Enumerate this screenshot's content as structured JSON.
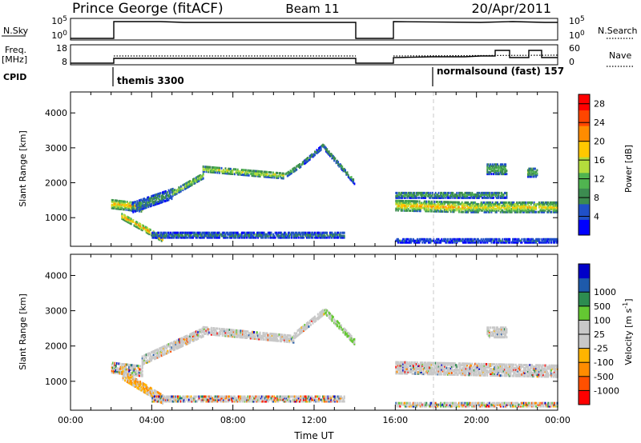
{
  "header": {
    "station": "Prince George (fitACF)",
    "beam": "Beam 11",
    "date": "20/Apr/2011"
  },
  "strip_panels": {
    "nsky": {
      "left_label": "N.Sky",
      "left_ticks": [
        "10^5",
        "10^0"
      ],
      "right_label": "N.Search",
      "right_ticks": [
        "10^5",
        "10^0"
      ]
    },
    "freq": {
      "left_label_line1": "Freq.",
      "left_label_line2": "[MHz]",
      "left_ticks": [
        "18",
        "8"
      ],
      "right_label": "Nave",
      "right_ticks": [
        "60",
        "0"
      ]
    },
    "cpid": {
      "label": "CPID",
      "modes": [
        {
          "name": "themis 3300",
          "start_hour": 2.0
        },
        {
          "name": "normalsound (fast) 157",
          "start_hour": 18.0
        }
      ]
    }
  },
  "colors": {
    "power": [
      "#0000ff",
      "#2050c8",
      "#3c8c50",
      "#50b450",
      "#b4dc3c",
      "#ffc800",
      "#ff8c00",
      "#ff4600",
      "#ff0000"
    ],
    "velocity": [
      "#ff0000",
      "#ff5000",
      "#ff8c00",
      "#ffb400",
      "#c8c8c8",
      "#c8c8c8",
      "#64c832",
      "#2d8c50",
      "#1e5aaa",
      "#0000c8"
    ]
  },
  "chart_data": [
    {
      "type": "heatmap",
      "panel": "power",
      "xlabel": "",
      "ylabel": "Slant Range [km]",
      "x_range_hours": [
        0,
        24
      ],
      "ylim": [
        180,
        4600
      ],
      "y_ticks": [
        "1000",
        "2000",
        "3000",
        "4000"
      ],
      "data_gap_hours": [
        14.0,
        16.0
      ],
      "colorbar": {
        "label": "Power [dB]",
        "ticks": [
          "4",
          "8",
          "12",
          "16",
          "20",
          "24",
          "28"
        ],
        "range": [
          0,
          30
        ]
      },
      "echo_bands": [
        {
          "start": 2.0,
          "end": 3.5,
          "center_km": [
            1400,
            1300
          ],
          "width_km": 250,
          "level": 20
        },
        {
          "start": 3.0,
          "end": 5.0,
          "center_km": [
            1300,
            1700
          ],
          "width_km": 300,
          "level": 9
        },
        {
          "start": 5.0,
          "end": 6.5,
          "center_km": [
            1700,
            2200
          ],
          "width_km": 150,
          "level": 16
        },
        {
          "start": 6.5,
          "end": 10.5,
          "center_km": [
            2400,
            2200
          ],
          "width_km": 150,
          "level": 17
        },
        {
          "start": 10.5,
          "end": 11.5,
          "center_km": [
            2200,
            2600
          ],
          "width_km": 130,
          "level": 12
        },
        {
          "start": 11.5,
          "end": 12.5,
          "center_km": [
            2600,
            3100
          ],
          "width_km": 110,
          "level": 9
        },
        {
          "start": 12.5,
          "end": 14.0,
          "center_km": [
            3000,
            2000
          ],
          "width_km": 130,
          "level": 10
        },
        {
          "start": 2.5,
          "end": 4.5,
          "center_km": [
            1050,
            400
          ],
          "width_km": 160,
          "level": 22
        },
        {
          "start": 4.0,
          "end": 13.5,
          "center_km": [
            500,
            500
          ],
          "width_km": 140,
          "level": 9
        },
        {
          "start": 16.0,
          "end": 19.5,
          "center_km": [
            1350,
            1300
          ],
          "width_km": 280,
          "level": 20
        },
        {
          "start": 16.0,
          "end": 21.5,
          "center_km": [
            1650,
            1650
          ],
          "width_km": 160,
          "level": 11
        },
        {
          "start": 19.5,
          "end": 24.0,
          "center_km": [
            1300,
            1300
          ],
          "width_km": 280,
          "level": 18
        },
        {
          "start": 20.5,
          "end": 21.5,
          "center_km": [
            2400,
            2400
          ],
          "width_km": 300,
          "level": 12
        },
        {
          "start": 22.5,
          "end": 23.0,
          "center_km": [
            2300,
            2300
          ],
          "width_km": 250,
          "level": 12
        },
        {
          "start": 16.0,
          "end": 24.0,
          "center_km": [
            350,
            350
          ],
          "width_km": 120,
          "level": 6
        }
      ]
    },
    {
      "type": "heatmap",
      "panel": "velocity",
      "xlabel": "Time UT",
      "ylabel": "Slant Range [km]",
      "x_range_hours": [
        0,
        24
      ],
      "ylim": [
        180,
        4600
      ],
      "y_ticks": [
        "1000",
        "2000",
        "3000",
        "4000"
      ],
      "x_ticks": [
        "00:00",
        "04:00",
        "08:00",
        "12:00",
        "16:00",
        "20:00",
        "00:00"
      ],
      "data_gap_hours": [
        14.0,
        16.0
      ],
      "colorbar": {
        "label": "Velocity [m s^-1]",
        "ticks": [
          "-1000",
          "-500",
          "-100",
          "-25",
          "25",
          "100",
          "500",
          "1000"
        ]
      },
      "echo_bands": [
        {
          "start": 2.0,
          "end": 3.5,
          "center_km": [
            1400,
            1300
          ],
          "width_km": 300,
          "vclass": "mixed"
        },
        {
          "start": 2.5,
          "end": 4.5,
          "center_km": [
            1200,
            500
          ],
          "width_km": 250,
          "vclass": "neg"
        },
        {
          "start": 3.5,
          "end": 6.5,
          "center_km": [
            1600,
            2400
          ],
          "width_km": 250,
          "vclass": "low"
        },
        {
          "start": 6.5,
          "end": 11.0,
          "center_km": [
            2450,
            2200
          ],
          "width_km": 200,
          "vclass": "low"
        },
        {
          "start": 11.0,
          "end": 12.5,
          "center_km": [
            2300,
            3000
          ],
          "width_km": 150,
          "vclass": "low"
        },
        {
          "start": 12.5,
          "end": 14.0,
          "center_km": [
            3000,
            2100
          ],
          "width_km": 150,
          "vclass": "pos"
        },
        {
          "start": 4.0,
          "end": 13.5,
          "center_km": [
            500,
            500
          ],
          "width_km": 140,
          "vclass": "mixed"
        },
        {
          "start": 16.0,
          "end": 24.0,
          "center_km": [
            1400,
            1300
          ],
          "width_km": 350,
          "vclass": "low"
        },
        {
          "start": 20.5,
          "end": 21.5,
          "center_km": [
            2400,
            2400
          ],
          "width_km": 300,
          "vclass": "low"
        },
        {
          "start": 16.0,
          "end": 24.0,
          "center_km": [
            350,
            350
          ],
          "width_km": 120,
          "vclass": "mixed"
        }
      ]
    }
  ]
}
